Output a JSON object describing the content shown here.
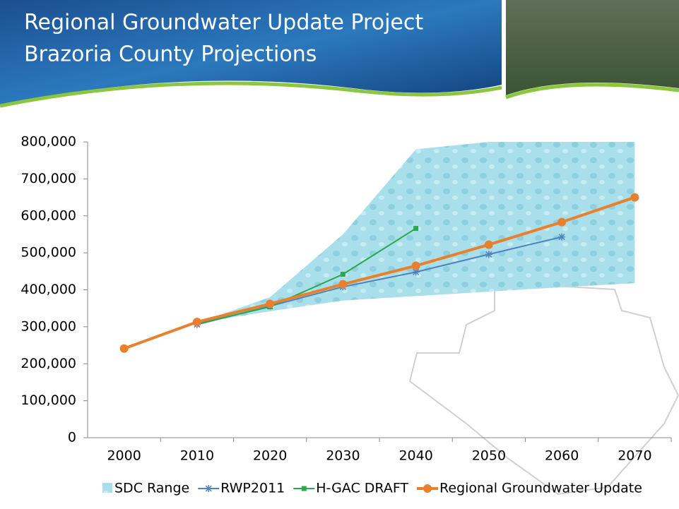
{
  "chart_data": {
    "type": "line",
    "title": "Regional Groundwater Update Project",
    "subtitle": "Brazoria County Projections",
    "categories": [
      "2000",
      "2010",
      "2020",
      "2030",
      "2040",
      "2050",
      "2060",
      "2070"
    ],
    "ylim": [
      0,
      800000
    ],
    "yticks": [
      0,
      {
        "value": 100000,
        "label": "100,000"
      },
      {
        "value": 200000,
        "label": "200,000"
      },
      {
        "value": 300000,
        "label": "300,000"
      },
      {
        "value": 400000,
        "label": "400,000"
      },
      {
        "value": 500000,
        "label": "500,000"
      },
      {
        "value": 600000,
        "label": "600,000"
      },
      {
        "value": 700000,
        "label": "700,000"
      },
      {
        "value": 800000,
        "label": "800,000"
      }
    ],
    "series": [
      {
        "name": "SDC Range",
        "type": "area",
        "color": "#a9dfea",
        "high": [
          null,
          310000,
          380000,
          550000,
          780000,
          800000,
          800000,
          800000
        ],
        "low": [
          null,
          310000,
          342000,
          371000,
          383000,
          395000,
          407000,
          418000
        ]
      },
      {
        "name": "RWP2011",
        "type": "line",
        "marker": "star",
        "color": "#4f81bd",
        "values": [
          null,
          306000,
          356000,
          408000,
          448000,
          496000,
          543000,
          null
        ]
      },
      {
        "name": "H-GAC DRAFT",
        "type": "line",
        "marker": "square",
        "color": "#2aa84a",
        "values": [
          null,
          308000,
          354000,
          442000,
          566000,
          null,
          null,
          null
        ]
      },
      {
        "name": "Regional Groundwater Update",
        "type": "line",
        "marker": "circle",
        "color": "#e8802e",
        "values": [
          241000,
          313000,
          362000,
          415000,
          465000,
          522000,
          583000,
          650000
        ]
      }
    ]
  }
}
